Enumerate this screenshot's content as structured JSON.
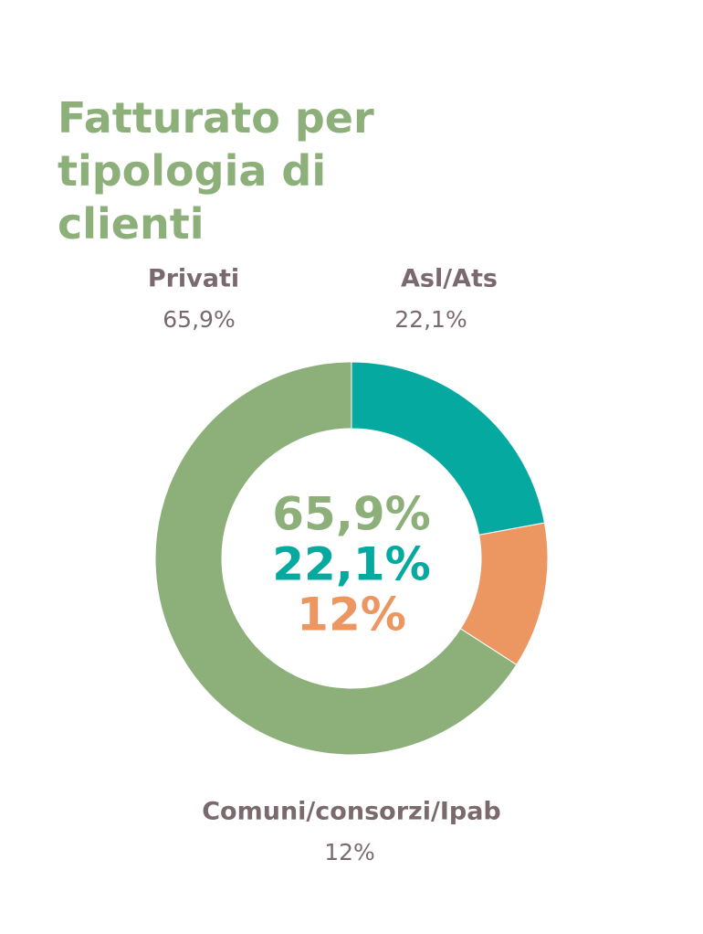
{
  "chart_data": {
    "type": "pie",
    "title": "Fatturato per tipologia di clienti",
    "categories": [
      "Privati",
      "Comuni/consorzi/Ipab",
      "Asl/Ats"
    ],
    "values": [
      65.9,
      12,
      22.1
    ],
    "value_labels": [
      "65,9%",
      "12%",
      "22,1%"
    ],
    "colors": [
      "#8db07b",
      "#ec9662",
      "#06a99f"
    ]
  }
}
